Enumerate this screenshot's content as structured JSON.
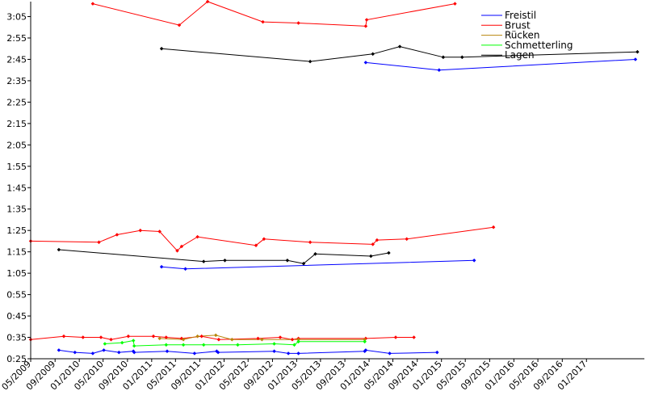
{
  "chart_data": {
    "type": "line",
    "title": "",
    "xlabel": "",
    "ylabel": "",
    "x_axis_type": "date",
    "xlim": [
      "2009-05-01",
      "2017-10-20"
    ],
    "ylim": [
      "0:25",
      "3:12"
    ],
    "y_value_format": "m:ss",
    "grid": false,
    "legend_position": "top-right",
    "x_ticks": [
      "05/2009",
      "09/2009",
      "01/2010",
      "05/2010",
      "09/2010",
      "01/2011",
      "05/2011",
      "09/2011",
      "01/2012",
      "05/2012",
      "09/2012",
      "01/2013",
      "05/2013",
      "09/2013",
      "01/2014",
      "05/2014",
      "09/2014",
      "01/2015",
      "05/2015",
      "09/2015",
      "01/2016",
      "05/2016",
      "09/2016",
      "01/2017"
    ],
    "y_ticks": [
      "0:25",
      "0:35",
      "0:45",
      "0:55",
      "1:05",
      "1:15",
      "1:25",
      "1:35",
      "1:45",
      "1:55",
      "2:05",
      "2:15",
      "2:25",
      "2:35",
      "2:45",
      "2:55",
      "3:05"
    ],
    "legend": [
      {
        "name": "Freistil",
        "color": "#0000ff"
      },
      {
        "name": "Brust",
        "color": "#ff0000"
      },
      {
        "name": "Rücken",
        "color": "#b8860b"
      },
      {
        "name": "Schmetterling",
        "color": "#00ff00"
      },
      {
        "name": "Lagen",
        "color": "#000000"
      }
    ],
    "series": [
      {
        "name": "Freistil",
        "color": "#0000ff",
        "segments": [
          [
            [
              "2009-09-20",
              "0:29.0"
            ],
            [
              "2009-12-10",
              "0:28.0"
            ],
            [
              "2010-03-10",
              "0:27.5"
            ],
            [
              "2010-05-05",
              "0:29.0"
            ],
            [
              "2010-07-20",
              "0:28.0"
            ],
            [
              "2010-10-01",
              "0:28.5"
            ],
            [
              "2010-10-05",
              "0:28.0"
            ],
            [
              "2011-03-20",
              "0:28.5"
            ],
            [
              "2011-08-05",
              "0:27.5"
            ],
            [
              "2011-11-25",
              "0:28.5"
            ],
            [
              "2011-12-02",
              "0:28.0"
            ],
            [
              "2012-09-10",
              "0:28.5"
            ],
            [
              "2012-11-20",
              "0:27.5"
            ],
            [
              "2013-01-10",
              "0:27.5"
            ],
            [
              "2013-12-10",
              "0:28.5"
            ],
            [
              "2013-12-15",
              "0:29.0"
            ],
            [
              "2014-04-15",
              "0:27.5"
            ],
            [
              "2014-12-10",
              "0:28.0"
            ]
          ],
          [
            [
              "2011-02-20",
              "1:08.0"
            ],
            [
              "2011-06-20",
              "1:07.0"
            ],
            [
              "2015-06-15",
              "1:11.0"
            ]
          ],
          [
            [
              "2013-12-15",
              "2:43.5"
            ],
            [
              "2014-12-20",
              "2:40.0"
            ],
            [
              "2017-09-05",
              "2:45.0"
            ]
          ]
        ]
      },
      {
        "name": "Brust",
        "color": "#ff0000",
        "segments": [
          [
            [
              "2009-05-01",
              "0:34.0"
            ],
            [
              "2009-10-15",
              "0:35.5"
            ],
            [
              "2010-01-20",
              "0:35.0"
            ],
            [
              "2010-04-20",
              "0:35.0"
            ],
            [
              "2010-06-10",
              "0:34.0"
            ],
            [
              "2010-09-05",
              "0:35.5"
            ],
            [
              "2011-01-10",
              "0:35.5"
            ],
            [
              "2011-03-15",
              "0:35.0"
            ],
            [
              "2011-06-01",
              "0:34.5"
            ],
            [
              "2011-09-10",
              "0:35.5"
            ],
            [
              "2011-12-05",
              "0:34.0"
            ],
            [
              "2012-06-20",
              "0:34.5"
            ],
            [
              "2012-10-10",
              "0:35.0"
            ],
            [
              "2012-12-10",
              "0:34.0"
            ],
            [
              "2013-01-10",
              "0:34.5"
            ],
            [
              "2013-12-15",
              "0:34.5"
            ],
            [
              "2014-05-15",
              "0:35.0"
            ],
            [
              "2014-08-15",
              "0:35.0"
            ]
          ],
          [
            [
              "2009-05-01",
              "1:20.0"
            ],
            [
              "2010-04-10",
              "1:19.5"
            ],
            [
              "2010-07-10",
              "1:23.0"
            ],
            [
              "2010-11-05",
              "1:25.0"
            ],
            [
              "2011-02-10",
              "1:24.5"
            ],
            [
              "2011-05-10",
              "1:15.5"
            ],
            [
              "2011-06-01",
              "1:17.5"
            ],
            [
              "2011-08-20",
              "1:22.0"
            ],
            [
              "2012-06-10",
              "1:18.0"
            ],
            [
              "2012-07-20",
              "1:21.0"
            ],
            [
              "2013-03-10",
              "1:19.5"
            ],
            [
              "2014-01-20",
              "1:18.5"
            ],
            [
              "2014-02-10",
              "1:20.5"
            ],
            [
              "2014-07-10",
              "1:21.0"
            ],
            [
              "2015-09-20",
              "1:26.5"
            ]
          ],
          [
            [
              "2010-03-10",
              "3:11.0"
            ],
            [
              "2011-05-20",
              "3:01.0"
            ],
            [
              "2011-10-10",
              "3:12.0"
            ],
            [
              "2012-07-15",
              "3:02.5"
            ],
            [
              "2013-01-10",
              "3:02.0"
            ],
            [
              "2013-12-15",
              "3:00.5"
            ],
            [
              "2013-12-20",
              "3:03.5"
            ],
            [
              "2015-03-10",
              "3:11.0"
            ]
          ]
        ]
      },
      {
        "name": "Rücken",
        "color": "#b8860b",
        "segments": [
          [
            [
              "2011-02-10",
              "0:34.5"
            ],
            [
              "2011-06-10",
              "0:34.0"
            ],
            [
              "2011-08-20",
              "0:35.5"
            ],
            [
              "2011-11-20",
              "0:36.0"
            ],
            [
              "2012-02-10",
              "0:34.0"
            ],
            [
              "2012-07-10",
              "0:34.0"
            ],
            [
              "2013-01-10",
              "0:34.0"
            ],
            [
              "2013-12-10",
              "0:34.0"
            ]
          ]
        ]
      },
      {
        "name": "Schmetterling",
        "color": "#00ff00",
        "segments": [
          [
            [
              "2010-05-10",
              "0:32.0"
            ],
            [
              "2010-08-05",
              "0:32.5"
            ],
            [
              "2010-10-01",
              "0:33.5"
            ],
            [
              "2010-10-05",
              "0:31.0"
            ],
            [
              "2011-03-15",
              "0:31.5"
            ],
            [
              "2011-06-10",
              "0:31.5"
            ],
            [
              "2011-09-20",
              "0:31.5"
            ],
            [
              "2012-03-10",
              "0:31.5"
            ],
            [
              "2012-09-10",
              "0:32.0"
            ],
            [
              "2012-12-20",
              "0:31.5"
            ],
            [
              "2013-01-10",
              "0:33.0"
            ],
            [
              "2013-12-10",
              "0:33.0"
            ]
          ]
        ]
      },
      {
        "name": "Lagen",
        "color": "#000000",
        "segments": [
          [
            [
              "2009-09-20",
              "1:16.0"
            ],
            [
              "2011-09-20",
              "1:10.5"
            ],
            [
              "2012-01-05",
              "1:11.0"
            ],
            [
              "2012-11-15",
              "1:11.0"
            ],
            [
              "2013-02-05",
              "1:09.5"
            ],
            [
              "2013-04-05",
              "1:14.0"
            ],
            [
              "2014-01-10",
              "1:13.0"
            ],
            [
              "2014-04-10",
              "1:14.5"
            ]
          ],
          [
            [
              "2011-02-20",
              "2:50.0"
            ],
            [
              "2013-03-10",
              "2:44.0"
            ],
            [
              "2014-01-20",
              "2:47.5"
            ],
            [
              "2014-06-05",
              "2:51.0"
            ],
            [
              "2015-01-10",
              "2:46.0"
            ],
            [
              "2015-04-15",
              "2:46.0"
            ],
            [
              "2017-09-15",
              "2:48.5"
            ]
          ]
        ]
      }
    ]
  }
}
